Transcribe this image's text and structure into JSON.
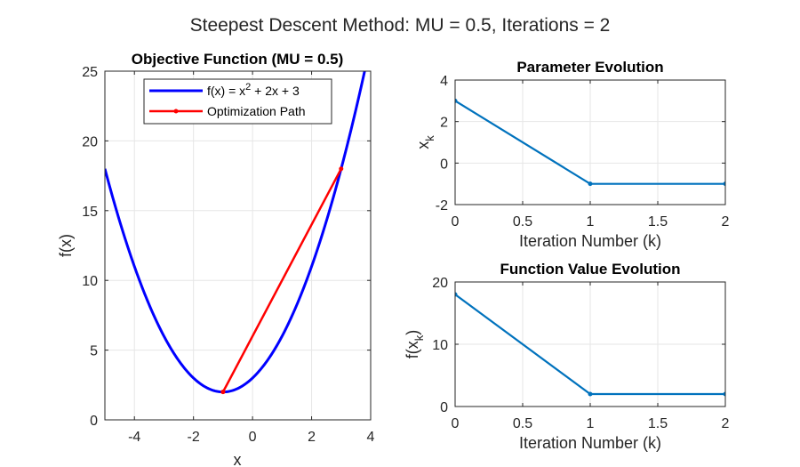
{
  "figure": {
    "suptitle": "Steepest Descent Method: MU = 0.5, Iterations = 2"
  },
  "chart_data": [
    {
      "id": "objective",
      "type": "line",
      "title": "Objective Function (MU = 0.5)",
      "xlabel": "x",
      "ylabel": "f(x)",
      "xlim": [
        -5,
        4
      ],
      "ylim": [
        0,
        25
      ],
      "xticks": [
        -4,
        -2,
        0,
        2,
        4
      ],
      "yticks": [
        0,
        5,
        10,
        15,
        20,
        25
      ],
      "grid": true,
      "legend": {
        "placement": "top-center",
        "entries": [
          {
            "label_base": "f(x) = x",
            "label_sup": "2",
            "label_rest": " + 2x + 3",
            "color": "#0000ff"
          },
          {
            "label": "Optimization Path",
            "color": "#ff0000"
          }
        ]
      },
      "series": [
        {
          "name": "f(x) = x^2 + 2x + 3",
          "kind": "function",
          "expression": "x^2 + 2x + 3",
          "x_range": [
            -5,
            4
          ],
          "color": "#0000ff"
        },
        {
          "name": "Optimization Path",
          "kind": "points",
          "x": [
            3,
            -1,
            -1
          ],
          "y": [
            18,
            2,
            2
          ],
          "color": "#ff0000"
        }
      ]
    },
    {
      "id": "param",
      "type": "line",
      "title": "Parameter Evolution",
      "xlabel": "Iteration Number (k)",
      "ylabel_base": "x",
      "ylabel_sub": "k",
      "xlim": [
        0,
        2
      ],
      "ylim": [
        -2,
        4
      ],
      "xticks": [
        0,
        0.5,
        1,
        1.5,
        2
      ],
      "yticks": [
        -2,
        0,
        2,
        4
      ],
      "grid": true,
      "series": [
        {
          "x": [
            0,
            1,
            2
          ],
          "y": [
            3,
            -1,
            -1
          ],
          "color": "#0072bd"
        }
      ]
    },
    {
      "id": "fval",
      "type": "line",
      "title": "Function Value Evolution",
      "xlabel": "Iteration Number (k)",
      "ylabel_base": "f(x",
      "ylabel_sub": "k",
      "ylabel_end": ")",
      "xlim": [
        0,
        2
      ],
      "ylim": [
        0,
        20
      ],
      "xticks": [
        0,
        0.5,
        1,
        1.5,
        2
      ],
      "yticks": [
        0,
        10,
        20
      ],
      "grid": true,
      "series": [
        {
          "x": [
            0,
            1,
            2
          ],
          "y": [
            18,
            2,
            2
          ],
          "color": "#0072bd"
        }
      ]
    }
  ]
}
